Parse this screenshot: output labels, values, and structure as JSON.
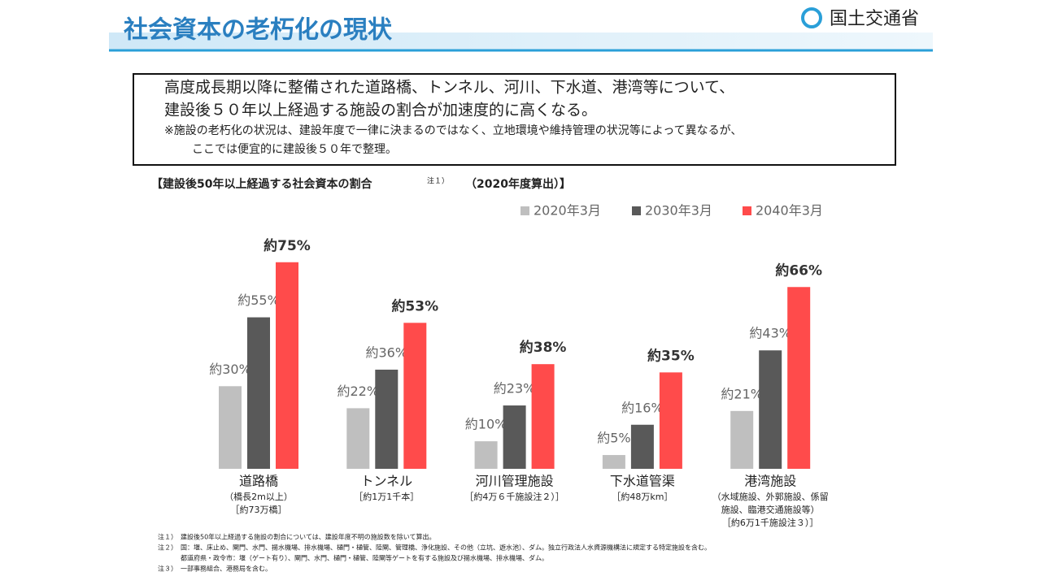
{
  "header": {
    "title": "社会資本の老朽化の現状",
    "org": "国土交通省"
  },
  "summary": {
    "lines": [
      "高度成長期以降に整備された道路橋、トンネル、河川、下水道、港湾等について、",
      "建設後５０年以上経過する施設の割合が加速度的に高くなる。"
    ],
    "note_lines": [
      "※施設の老朽化の状況は、建設年度で一律に決まるのではなく、立地環境や維持管理の状況等によって異なるが、",
      "ここでは便宜的に建設後５０年で整理。"
    ]
  },
  "chart_data": {
    "type": "bar",
    "title": "【建設後50年以上経過する社会資本の割合",
    "title_note": "注１）",
    "title_suffix": "（2020年度算出）】",
    "categories": [
      "道路橋",
      "トンネル",
      "河川管理施設",
      "下水道管渠",
      "港湾施設"
    ],
    "category_details": [
      [
        "（橋長2m以上）",
        "［約73万橋］"
      ],
      [
        "［約1万1千本］"
      ],
      [
        "［約4万６千施設注２）］"
      ],
      [
        "［約48万km］"
      ],
      [
        "（水域施設、外郭施設、係留",
        "施設、臨港交通施設等）",
        "［約6万1千施設注３）］"
      ]
    ],
    "series": [
      {
        "name": "2020年3月",
        "color": "#bfbfbf",
        "values": [
          30,
          22,
          10,
          5,
          21
        ],
        "value_labels": [
          "約30%",
          "約22%",
          "約10%",
          "約5%",
          "約21%"
        ]
      },
      {
        "name": "2030年3月",
        "color": "#595959",
        "values": [
          55,
          36,
          23,
          16,
          43
        ],
        "value_labels": [
          "約55%",
          "約36%",
          "約23%",
          "約16%",
          "約43%"
        ]
      },
      {
        "name": "2040年3月",
        "color": "#ff4b4b",
        "values": [
          75,
          53,
          38,
          35,
          66
        ],
        "value_labels": [
          "約75%",
          "約53%",
          "約38%",
          "約35%",
          "約66%"
        ]
      }
    ]
  },
  "notes": [
    [
      "注１）",
      "建設後50年以上経過する施設の割合については、建設年度不明の施設数を除いて算出。"
    ],
    [
      "注２）",
      "国：堰、床止め、閘門、水門、揚水機場、排水機場、樋門・樋管、陸閘、管理橋、浄化施設、その他（立坑、遊水池）、ダム。独立行政法人水資源機構法に規定する特定施設を含む。",
      "都道府県・政令市：堰（ゲート有り）、閘門、水門、樋門・樋管、陸閘等ゲートを有する施設及び揚水機場、排水機場、ダム。"
    ],
    [
      "注３）",
      "一部事務組合、港務局を含む。"
    ]
  ]
}
